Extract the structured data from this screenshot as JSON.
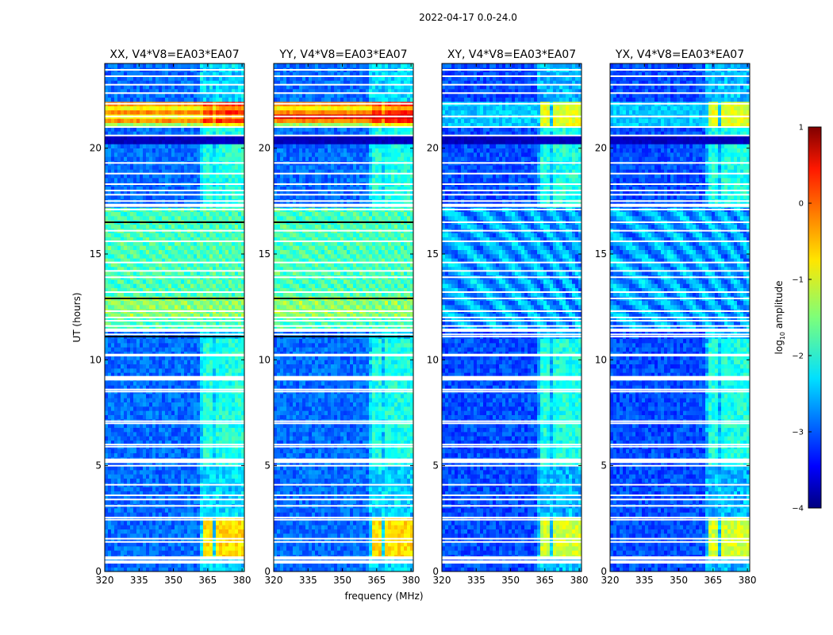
{
  "chart_data": {
    "type": "heatmap",
    "suptitle": "2022-04-17 0.0-24.0",
    "xlabel": "frequency (MHz)",
    "ylabel": "UT (hours)",
    "xlim": [
      320,
      381
    ],
    "ylim": [
      0,
      24
    ],
    "xticks": [
      "320",
      "335",
      "350",
      "365",
      "380"
    ],
    "xtick_values": [
      320,
      335,
      350,
      365,
      380
    ],
    "yticks": [
      "0",
      "5",
      "10",
      "15",
      "20"
    ],
    "ytick_values": [
      0,
      5,
      10,
      15,
      20
    ],
    "colorbar": {
      "label_prefix": "log",
      "label_sub": "10",
      "label_suffix": " amplitude",
      "range": [
        -4,
        1
      ],
      "ticks": [
        "1",
        "0",
        "−1",
        "−2",
        "−3",
        "−4"
      ],
      "tick_values": [
        1,
        0,
        -1,
        -2,
        -3,
        -4
      ]
    },
    "panels": [
      {
        "title": "XX, V4*V8=EA03*EA07",
        "pol": "XX"
      },
      {
        "title": "YY, V4*V8=EA03*EA07",
        "pol": "YY"
      },
      {
        "title": "XY, V4*V8=EA03*EA07",
        "pol": "XY"
      },
      {
        "title": "YX, V4*V8=EA03*EA07",
        "pol": "YX"
      }
    ],
    "features": {
      "rfi_channels_mhz": [
        [
          363.5,
          367.5
        ],
        [
          368.3,
          372.3
        ],
        [
          373.0,
          376.5
        ],
        [
          377.3,
          380.5
        ]
      ],
      "flagged_hours": [
        0.45,
        0.6,
        0.68,
        1.4,
        1.55,
        2.45,
        2.55,
        3.1,
        3.4,
        3.6,
        4.1,
        5.0,
        5.2,
        5.3,
        5.9,
        6.0,
        7.0,
        7.1,
        8.5,
        8.6,
        9.1,
        9.2,
        10.2,
        10.25,
        11.1,
        11.2,
        11.4,
        11.6,
        11.85,
        12.0,
        12.3,
        12.9,
        13.2,
        13.9,
        14.2,
        14.6,
        15.6,
        16.1,
        16.5,
        17.1,
        17.3,
        17.5,
        17.8,
        18.0,
        18.3,
        18.8,
        19.3,
        20.6,
        21.0,
        21.5,
        22.1,
        22.6,
        23.0,
        23.4,
        23.7
      ],
      "dark_band_hours": [
        20.2,
        20.6
      ],
      "strong_band_hours": [
        21.0,
        22.3
      ],
      "strong_rfi_hours": [
        0.6,
        2.6
      ]
    }
  }
}
